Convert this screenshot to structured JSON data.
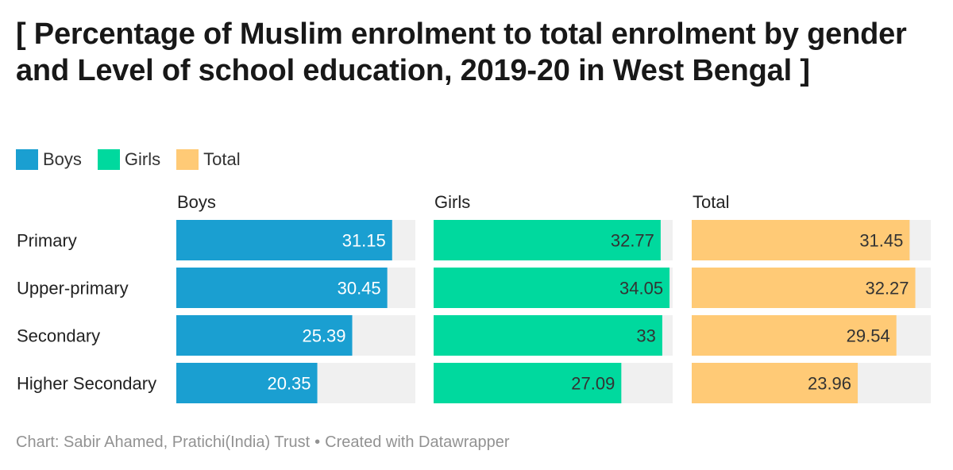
{
  "title": "[ Percentage of Muslim enrolment to total enrolment by gender and Level of school education, 2019-20 in West Bengal  ]",
  "legend": [
    {
      "label": "Boys",
      "color": "#1a9fd1"
    },
    {
      "label": "Girls",
      "color": "#00d99e"
    },
    {
      "label": "Total",
      "color": "#ffca76"
    }
  ],
  "chart_data": {
    "type": "bar",
    "orientation": "horizontal",
    "layout": "small-multiples",
    "categories": [
      "Primary",
      "Upper-primary",
      "Secondary",
      "Higher Secondary"
    ],
    "series": [
      {
        "name": "Boys",
        "color": "#1a9fd1",
        "label_color": "#ffffff",
        "values": [
          31.15,
          30.45,
          25.39,
          20.35
        ]
      },
      {
        "name": "Girls",
        "color": "#00d99e",
        "label_color": "#333333",
        "values": [
          32.77,
          34.05,
          33,
          27.09
        ]
      },
      {
        "name": "Total",
        "color": "#ffca76",
        "label_color": "#333333",
        "values": [
          31.45,
          32.27,
          29.54,
          23.96
        ]
      }
    ],
    "xlim": [
      0,
      34.5
    ],
    "background_track_color": "#f0f0f0",
    "value_labels": "inside-end",
    "grid": false
  },
  "footer": {
    "source": "Chart: Sabir Ahamed, Pratichi(India) Trust",
    "separator": "•",
    "credit": "Created with Datawrapper"
  }
}
